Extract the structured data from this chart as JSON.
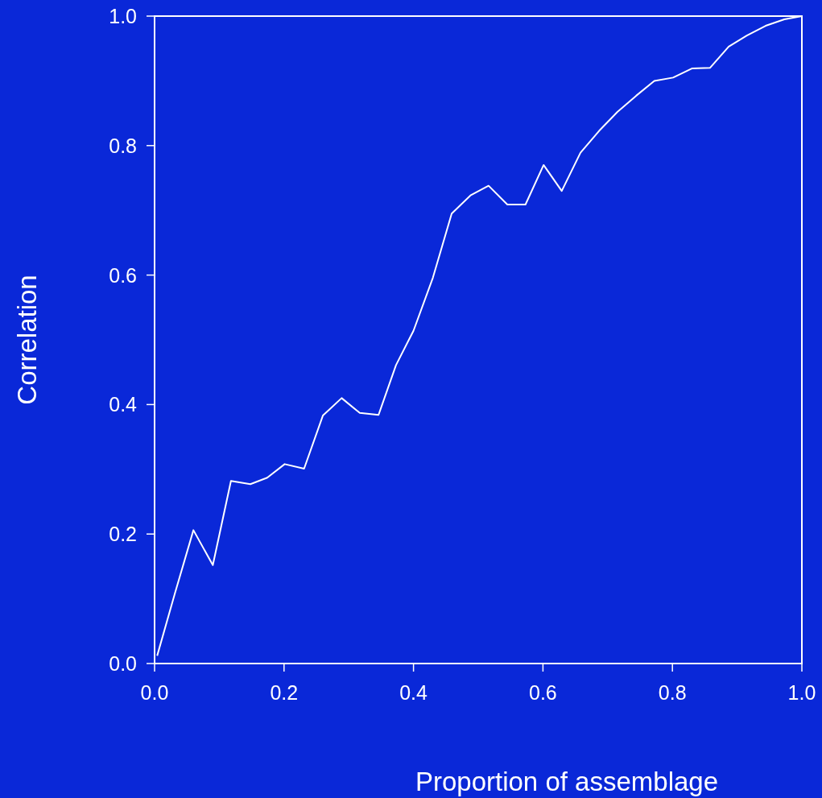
{
  "chart_data": {
    "type": "line",
    "xlabel": "Proportion of assemblage",
    "ylabel": "Correlation",
    "x": [
      0.004,
      0.031,
      0.06,
      0.09,
      0.118,
      0.148,
      0.174,
      0.201,
      0.231,
      0.26,
      0.289,
      0.317,
      0.346,
      0.373,
      0.4,
      0.43,
      0.459,
      0.488,
      0.516,
      0.545,
      0.573,
      0.601,
      0.629,
      0.658,
      0.687,
      0.715,
      0.744,
      0.772,
      0.801,
      0.83,
      0.858,
      0.887,
      0.915,
      0.944,
      0.973,
      1.0
    ],
    "series": [
      {
        "color": "#ffffff",
        "values": [
          0.012,
          0.107,
          0.206,
          0.152,
          0.282,
          0.277,
          0.287,
          0.308,
          0.301,
          0.383,
          0.41,
          0.387,
          0.384,
          0.461,
          0.514,
          0.596,
          0.695,
          0.723,
          0.738,
          0.709,
          0.709,
          0.77,
          0.73,
          0.789,
          0.823,
          0.852,
          0.877,
          0.9,
          0.905,
          0.919,
          0.92,
          0.953,
          0.97,
          0.985,
          0.995,
          1.0
        ]
      }
    ],
    "xlim": [
      0,
      1
    ],
    "ylim": [
      0,
      1
    ],
    "xticks": [
      {
        "value": 0,
        "label": "0.0"
      },
      0.2,
      0.4,
      0.6,
      0.8,
      {
        "value": 1,
        "label": "1.0"
      }
    ],
    "yticks": [
      {
        "value": 0,
        "label": "0.0"
      },
      0.2,
      0.4,
      0.6,
      0.8,
      {
        "value": 1,
        "label": "1.0"
      }
    ],
    "grid": false,
    "marker": "none",
    "line_style": "solid"
  }
}
